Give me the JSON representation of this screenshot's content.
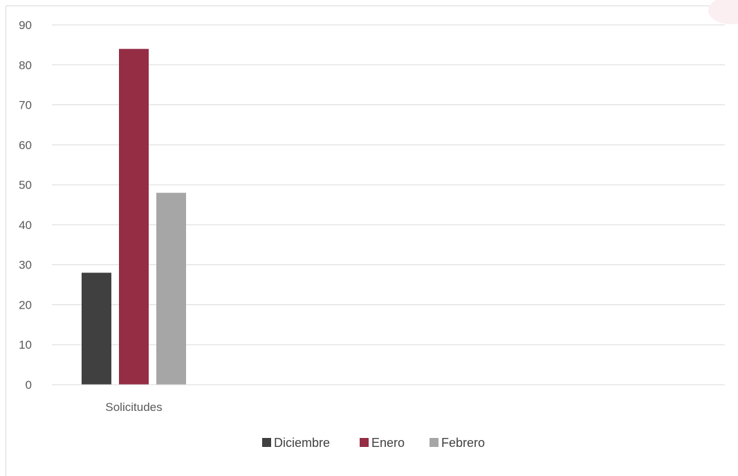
{
  "chart_data": {
    "type": "bar",
    "categories": [
      "Solicitudes"
    ],
    "series": [
      {
        "name": "Diciembre",
        "values": [
          28
        ],
        "color": "#404040"
      },
      {
        "name": "Enero",
        "values": [
          84
        ],
        "color": "#952d45"
      },
      {
        "name": "Febrero",
        "values": [
          48
        ],
        "color": "#a6a6a6"
      }
    ],
    "ylim": [
      0,
      90
    ],
    "yticks": [
      0,
      10,
      20,
      30,
      40,
      50,
      60,
      70,
      80,
      90
    ],
    "ytick_labels": [
      "0",
      "10",
      "20",
      "30",
      "40",
      "50",
      "60",
      "70",
      "80",
      "90"
    ],
    "grid": true,
    "legend": "bottom",
    "title": "",
    "xlabel": "",
    "ylabel": ""
  }
}
